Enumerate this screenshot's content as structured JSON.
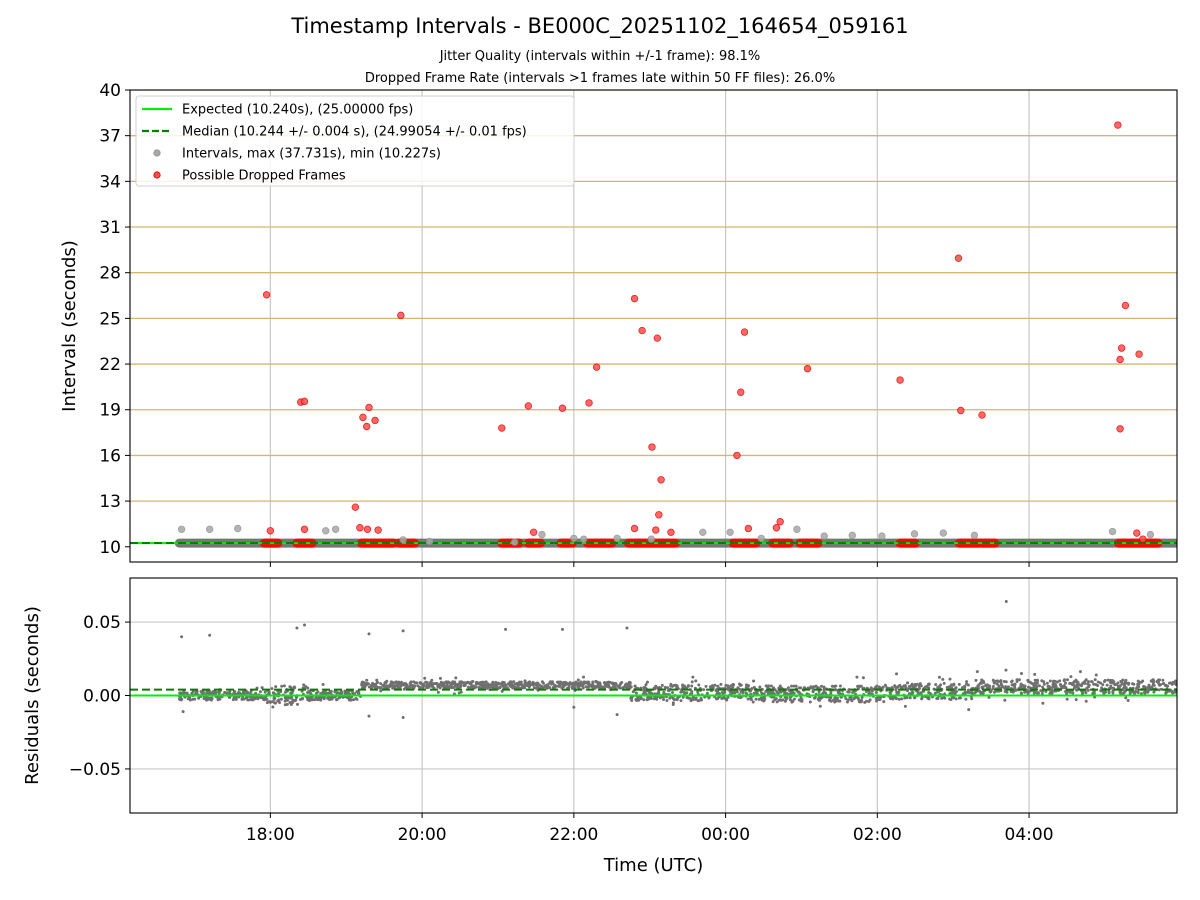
{
  "title": "Timestamp Intervals - BE000C_20251102_164654_059161",
  "subtitles": [
    "Jitter Quality (intervals within +/-1 frame): 98.1%",
    "Dropped Frame Rate (intervals >1 frames late within 50 FF files): 26.0%"
  ],
  "colors": {
    "expected": "#00ee00",
    "median": "#008000",
    "intervals": "#a8a8a8",
    "dropped": "#ff0000",
    "residuals": "#707070",
    "frame_grid": "#d4b76a",
    "grid": "#c8c8c8"
  },
  "chart_data": [
    {
      "type": "scatter",
      "panel": "top",
      "xlabel": "",
      "ylabel": "Intervals (seconds)",
      "xlim": [
        16.15,
        29.95
      ],
      "ylim": [
        9.0,
        40.0
      ],
      "yticks": [
        10,
        13,
        16,
        19,
        22,
        25,
        28,
        31,
        34,
        37,
        40
      ],
      "ytick_labels": [
        "10",
        "13",
        "16",
        "19",
        "22",
        "25",
        "28",
        "31",
        "34",
        "37",
        "40"
      ],
      "xticks": [
        18,
        20,
        22,
        24,
        26,
        28
      ],
      "grid": true,
      "frame_lines": [
        13,
        16,
        19,
        22,
        25,
        28,
        31,
        34,
        37,
        40
      ],
      "legend_position": "upper-left",
      "legend": [
        {
          "label": "Expected (10.240s), (25.00000 fps)",
          "style": "solid-line",
          "color": "#00ee00"
        },
        {
          "label": "Median (10.244 +/- 0.004 s), (24.99054 +/- 0.01 fps)",
          "style": "dashed-line",
          "color": "#008000"
        },
        {
          "label": "Intervals, max (37.731s), min (10.227s)",
          "style": "marker",
          "color": "#a8a8a8"
        },
        {
          "label": "Possible Dropped Frames",
          "style": "marker",
          "color": "#ff0000"
        }
      ],
      "expected": 10.24,
      "median": 10.244,
      "series": [
        {
          "name": "Intervals, max (37.731s), min (10.227s)",
          "color": "#a8a8a8",
          "segments": [
            [
              16.8,
              29.95,
              10.24
            ]
          ],
          "points": [
            [
              16.83,
              11.15
            ],
            [
              17.2,
              11.15
            ],
            [
              17.57,
              11.2
            ],
            [
              18.73,
              11.05
            ],
            [
              18.86,
              11.15
            ],
            [
              19.75,
              10.45
            ],
            [
              20.1,
              10.35
            ],
            [
              21.22,
              10.3
            ],
            [
              21.58,
              10.8
            ],
            [
              22.0,
              10.55
            ],
            [
              22.13,
              10.5
            ],
            [
              22.57,
              10.55
            ],
            [
              23.02,
              10.5
            ],
            [
              23.7,
              10.95
            ],
            [
              24.06,
              10.95
            ],
            [
              24.47,
              10.55
            ],
            [
              24.94,
              11.15
            ],
            [
              25.3,
              10.7
            ],
            [
              25.67,
              10.75
            ],
            [
              26.06,
              10.7
            ],
            [
              26.49,
              10.85
            ],
            [
              26.87,
              10.9
            ],
            [
              27.28,
              10.75
            ],
            [
              29.1,
              11.0
            ],
            [
              29.6,
              10.8
            ]
          ]
        },
        {
          "name": "Possible Dropped Frames",
          "color": "#ff0000",
          "segments": [
            [
              17.92,
              18.1,
              10.24
            ],
            [
              18.35,
              18.55,
              10.24
            ],
            [
              19.2,
              19.62,
              10.24
            ],
            [
              19.7,
              19.9,
              10.24
            ],
            [
              21.05,
              21.28,
              10.24
            ],
            [
              21.4,
              21.56,
              10.24
            ],
            [
              21.83,
              21.98,
              10.24
            ],
            [
              22.18,
              22.5,
              10.24
            ],
            [
              22.72,
              23.34,
              10.24
            ],
            [
              24.1,
              24.4,
              10.24
            ],
            [
              24.62,
              24.84,
              10.24
            ],
            [
              24.98,
              25.22,
              10.24
            ],
            [
              26.3,
              26.5,
              10.24
            ],
            [
              27.08,
              27.35,
              10.24
            ],
            [
              27.38,
              27.55,
              10.24
            ],
            [
              29.18,
              29.7,
              10.24
            ]
          ],
          "points": [
            [
              17.95,
              26.55
            ],
            [
              18.0,
              11.05
            ],
            [
              18.4,
              19.5
            ],
            [
              18.45,
              19.55
            ],
            [
              18.45,
              11.15
            ],
            [
              19.12,
              12.6
            ],
            [
              19.18,
              11.25
            ],
            [
              19.22,
              18.5
            ],
            [
              19.27,
              17.9
            ],
            [
              19.28,
              11.15
            ],
            [
              19.3,
              19.15
            ],
            [
              19.38,
              18.3
            ],
            [
              19.42,
              11.1
            ],
            [
              19.72,
              25.2
            ],
            [
              21.05,
              17.8
            ],
            [
              21.47,
              10.95
            ],
            [
              21.4,
              19.25
            ],
            [
              21.85,
              19.1
            ],
            [
              22.2,
              19.45
            ],
            [
              22.3,
              21.8
            ],
            [
              22.8,
              26.3
            ],
            [
              22.8,
              11.2
            ],
            [
              22.9,
              24.2
            ],
            [
              23.03,
              16.55
            ],
            [
              23.08,
              11.1
            ],
            [
              23.1,
              23.7
            ],
            [
              23.12,
              12.1
            ],
            [
              23.15,
              14.4
            ],
            [
              23.28,
              10.95
            ],
            [
              24.15,
              16.0
            ],
            [
              24.2,
              20.15
            ],
            [
              24.25,
              24.1
            ],
            [
              24.3,
              11.2
            ],
            [
              24.67,
              11.25
            ],
            [
              24.72,
              11.65
            ],
            [
              25.08,
              21.7
            ],
            [
              26.3,
              20.95
            ],
            [
              27.07,
              28.95
            ],
            [
              27.1,
              18.95
            ],
            [
              27.38,
              18.65
            ],
            [
              29.17,
              37.7
            ],
            [
              29.2,
              22.3
            ],
            [
              29.22,
              23.05
            ],
            [
              29.2,
              17.75
            ],
            [
              29.27,
              25.85
            ],
            [
              29.42,
              10.9
            ],
            [
              29.45,
              22.65
            ],
            [
              29.5,
              10.5
            ]
          ]
        }
      ]
    },
    {
      "type": "scatter",
      "panel": "bottom",
      "xlabel": "Time (UTC)",
      "ylabel": "Residuals (seconds)",
      "xlim": [
        16.15,
        29.95
      ],
      "ylim": [
        -0.08,
        0.08
      ],
      "yticks": [
        -0.05,
        0.0,
        0.05
      ],
      "ytick_labels": [
        "−0.05",
        "0.00",
        "0.05"
      ],
      "xticks": [
        18,
        20,
        22,
        24,
        26,
        28
      ],
      "xtick_labels": [
        "18:00",
        "20:00",
        "22:00",
        "00:00",
        "02:00",
        "04:00"
      ],
      "grid": true,
      "expected": 0.0,
      "median": 0.004,
      "series": [
        {
          "name": "",
          "color": "#707070",
          "bands": [
            [
              16.8,
              17.95,
              0.0,
              0.004
            ],
            [
              17.95,
              18.5,
              0.0,
              0.008
            ],
            [
              18.5,
              19.2,
              0.0,
              0.004
            ],
            [
              19.2,
              22.75,
              0.007,
              0.003
            ],
            [
              22.75,
              24.35,
              0.002,
              0.007
            ],
            [
              24.35,
              26.2,
              0.001,
              0.007
            ],
            [
              26.2,
              27.3,
              0.003,
              0.007
            ],
            [
              27.3,
              29.95,
              0.006,
              0.006
            ]
          ],
          "outliers": [
            [
              16.83,
              0.04
            ],
            [
              17.2,
              0.041
            ],
            [
              18.35,
              0.046
            ],
            [
              18.45,
              0.048
            ],
            [
              19.3,
              0.042
            ],
            [
              19.75,
              0.044
            ],
            [
              21.1,
              0.045
            ],
            [
              21.85,
              0.045
            ],
            [
              22.7,
              0.046
            ],
            [
              27.7,
              0.064
            ],
            [
              16.85,
              -0.011
            ],
            [
              19.3,
              -0.014
            ],
            [
              19.75,
              -0.015
            ],
            [
              22.57,
              -0.013
            ],
            [
              22.0,
              -0.008
            ]
          ]
        }
      ]
    }
  ]
}
